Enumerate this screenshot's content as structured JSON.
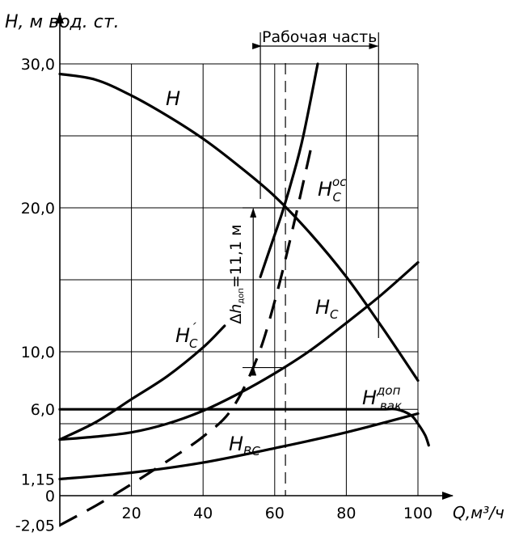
{
  "chart_data": {
    "type": "line",
    "ylabel": "H, м вод. ст.",
    "xlabel": "Q,м³/ч",
    "xlim": [
      0,
      100
    ],
    "ylim": [
      -2.05,
      30
    ],
    "grid": true,
    "x_ticks": [
      {
        "v": 20,
        "label": "20"
      },
      {
        "v": 40,
        "label": "40"
      },
      {
        "v": 60,
        "label": "60"
      },
      {
        "v": 80,
        "label": "80"
      },
      {
        "v": 100,
        "label": "100"
      }
    ],
    "y_ticks": [
      {
        "v": 30,
        "label": "30,0"
      },
      {
        "v": 20,
        "label": "20,0"
      },
      {
        "v": 10,
        "label": "10,0"
      },
      {
        "v": 6,
        "label": "6,0"
      },
      {
        "v": 1.15,
        "label": "1,15"
      },
      {
        "v": 0,
        "label": "0"
      },
      {
        "v": -2.05,
        "label": "-2,05"
      }
    ],
    "x_grid": [
      20,
      40,
      60,
      80,
      100
    ],
    "y_grid": [
      30,
      25,
      20,
      15,
      10,
      6,
      5
    ],
    "annotations": {
      "working_range": {
        "label": "Рабочая часть",
        "x": [
          56,
          89
        ]
      },
      "vertical_dashed_x": 63,
      "delta_h": {
        "label_prefix": "Δ",
        "label_main": "h",
        "label_sub": "доп",
        "label_suffix": "=11,1 м",
        "y_from": 20,
        "y_to": 8.9,
        "x": 54
      }
    },
    "series": [
      {
        "key": "H",
        "style": "solid",
        "x": [
          0,
          10,
          20,
          30,
          40,
          50,
          60,
          70,
          80,
          90,
          100
        ],
        "y": [
          29.3,
          28.9,
          27.8,
          26.4,
          24.8,
          22.9,
          20.8,
          18.2,
          15.2,
          11.7,
          8.0
        ]
      },
      {
        "key": "H_C",
        "style": "solid",
        "x": [
          0,
          10,
          20,
          30,
          40,
          50,
          60,
          70,
          80,
          90,
          100
        ],
        "y": [
          3.9,
          4.1,
          4.4,
          5.0,
          5.9,
          7.1,
          8.5,
          10.1,
          12.0,
          14.0,
          16.2
        ]
      },
      {
        "key": "H_C_prime",
        "style": "solid",
        "x": [
          0,
          10,
          20,
          30,
          40,
          46
        ],
        "y": [
          3.9,
          5.1,
          6.7,
          8.3,
          10.3,
          11.8
        ]
      },
      {
        "key": "H_C_oc",
        "style": "solid",
        "x": [
          56,
          59,
          62,
          65,
          68,
          72
        ],
        "y": [
          15.2,
          17.4,
          19.6,
          22.1,
          25.0,
          30.0
        ]
      },
      {
        "key": "H_C_oc_dashed",
        "style": "dashed",
        "x": [
          0,
          10,
          20,
          30,
          40,
          48,
          55,
          60,
          65,
          70
        ],
        "y": [
          -2.05,
          -0.7,
          0.8,
          2.4,
          4.1,
          6.0,
          9.5,
          13.5,
          18.5,
          24.0
        ]
      },
      {
        "key": "H_vak",
        "style": "solid",
        "x": [
          0,
          20,
          40,
          60,
          80,
          90,
          94,
          98,
          100,
          102,
          103
        ],
        "y": [
          6.0,
          6.0,
          6.0,
          6.0,
          6.0,
          6.0,
          6.0,
          5.6,
          5.0,
          4.2,
          3.5
        ]
      },
      {
        "key": "H_BC",
        "style": "solid",
        "x": [
          0,
          20,
          40,
          60,
          80,
          100
        ],
        "y": [
          1.15,
          1.6,
          2.3,
          3.3,
          4.4,
          5.7
        ]
      }
    ],
    "curve_labels": [
      {
        "key": "H",
        "main": "H",
        "sub": "",
        "sup": ""
      },
      {
        "key": "H_C",
        "main": "H",
        "sub": "C",
        "sup": ""
      },
      {
        "key": "H_C_prime",
        "main": "H",
        "sub": "C",
        "sup": "´"
      },
      {
        "key": "H_C_oc",
        "main": "H",
        "sub": "C",
        "sup": "ос"
      },
      {
        "key": "H_vak",
        "main": "H",
        "sub": "вак",
        "sup": "доп"
      },
      {
        "key": "H_BC",
        "main": "H",
        "sub": "ВС",
        "sup": ""
      }
    ]
  }
}
